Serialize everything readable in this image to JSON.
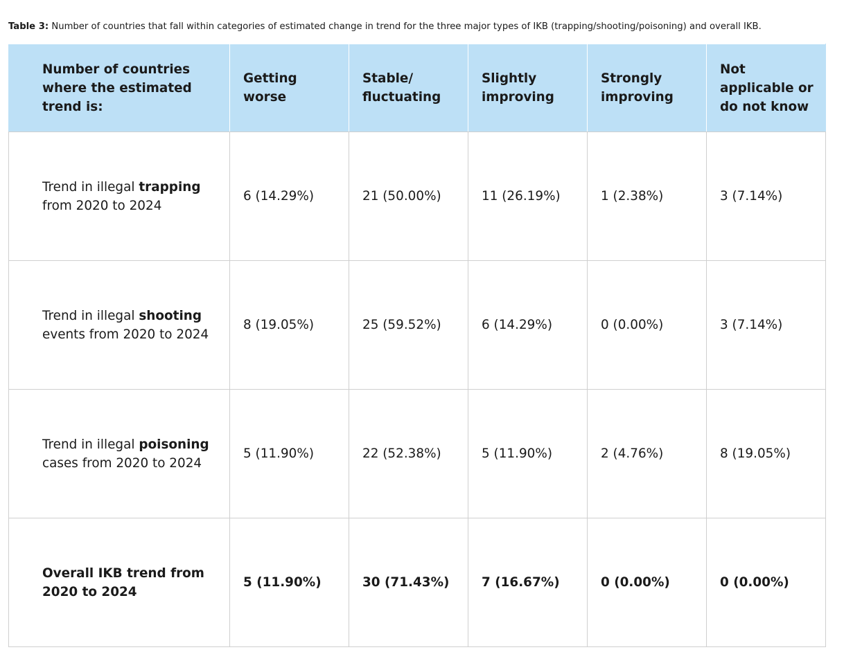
{
  "caption": {
    "label": "Table 3:",
    "text": "Number of countries that fall within categories of estimated change in trend for the three major types of IKB (trapping/shooting/poisoning) and overall IKB."
  },
  "table": {
    "headers": [
      "Number of countries where the estimated trend is:",
      "Getting worse",
      "Stable/ fluctuating",
      "Slightly improving",
      "Strongly improving",
      "Not applicable or do not know"
    ],
    "rows": [
      {
        "label_pre": "Trend in illegal ",
        "label_bold": "trapping",
        "label_post": " from 2020 to 2024",
        "cells": [
          "6 (14.29%)",
          "21 (50.00%)",
          "11 (26.19%)",
          "1 (2.38%)",
          "3 (7.14%)"
        ]
      },
      {
        "label_pre": "Trend in illegal ",
        "label_bold": "shooting",
        "label_post": " events from 2020 to 2024",
        "cells": [
          "8 (19.05%)",
          "25 (59.52%)",
          "6 (14.29%)",
          "0 (0.00%)",
          "3 (7.14%)"
        ]
      },
      {
        "label_pre": "Trend in illegal ",
        "label_bold": "poisoning",
        "label_post": " cases from 2020 to 2024",
        "cells": [
          "5 (11.90%)",
          "22 (52.38%)",
          "5 (11.90%)",
          "2 (4.76%)",
          "8 (19.05%)"
        ]
      },
      {
        "label_pre": "",
        "label_bold": "Overall IKB trend from 2020 to 2024",
        "label_post": "",
        "cells": [
          "5 (11.90%)",
          "30 (71.43%)",
          "7 (16.67%)",
          "0 (0.00%)",
          "0 (0.00%)"
        ]
      }
    ]
  },
  "colors": {
    "header_bg": "#bde0f6",
    "border": "#cfcfcf"
  }
}
